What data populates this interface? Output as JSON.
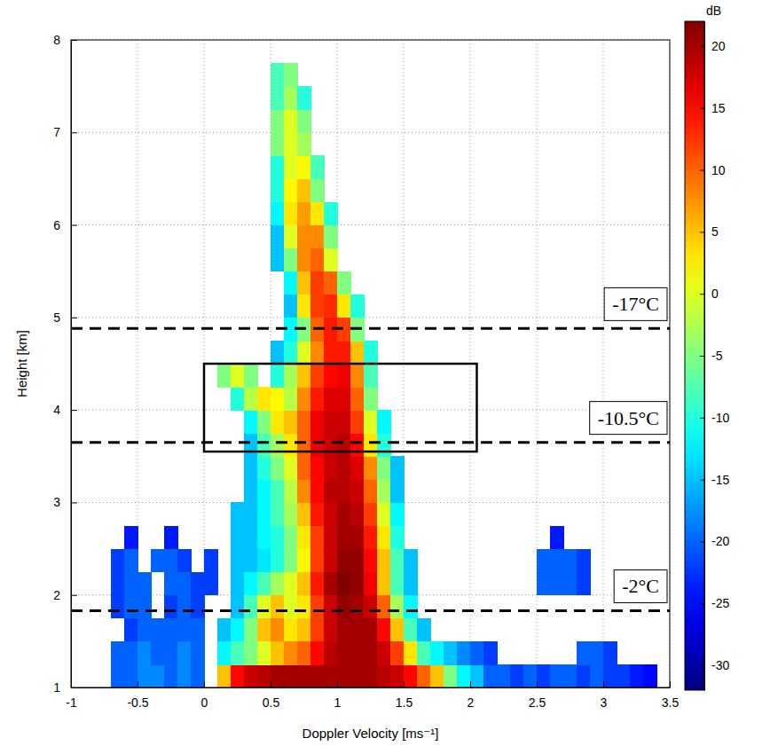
{
  "chart_data": {
    "type": "heatmap",
    "x_label": "Doppler Velocity [ms⁻¹]",
    "y_label": "Height [km]",
    "xlim": [
      -1,
      3.5
    ],
    "ylim": [
      1,
      8
    ],
    "xticks": [
      -1,
      -0.5,
      0,
      0.5,
      1,
      1.5,
      2,
      2.5,
      3,
      3.5
    ],
    "yticks": [
      1,
      2,
      3,
      4,
      5,
      6,
      7,
      8
    ],
    "grid": true,
    "x": [
      -0.95,
      -0.85,
      -0.75,
      -0.65,
      -0.55,
      -0.45,
      -0.35,
      -0.25,
      -0.15,
      -0.05,
      0.05,
      0.15,
      0.25,
      0.35,
      0.45,
      0.55,
      0.65,
      0.75,
      0.85,
      0.95,
      1.05,
      1.15,
      1.25,
      1.35,
      1.45,
      1.55,
      1.65,
      1.75,
      1.85,
      1.95,
      2.05,
      2.15,
      2.25,
      2.35,
      2.45,
      2.55,
      2.65,
      2.75,
      2.85,
      2.95,
      3.05,
      3.15,
      3.25,
      3.35,
      3.45
    ],
    "y": [
      1.125,
      1.375,
      1.625,
      1.875,
      2.125,
      2.375,
      2.625,
      2.875,
      3.125,
      3.375,
      3.625,
      3.875,
      4.125,
      4.375,
      4.625,
      4.875,
      5.125,
      5.375,
      5.625,
      5.875,
      6.125,
      6.375,
      6.625,
      6.875,
      7.125,
      7.375,
      7.625
    ],
    "cells": [
      [
        null,
        null,
        null,
        -20,
        -20,
        -18,
        -18,
        -20,
        -18,
        -20,
        null,
        5,
        15,
        18,
        19,
        20,
        20,
        20,
        20,
        20,
        20,
        20,
        20,
        19,
        18,
        15,
        10,
        5,
        -5,
        -12,
        -15,
        -20,
        -20,
        -22,
        -20,
        -22,
        -20,
        -20,
        -22,
        -20,
        -22,
        -22,
        -24,
        -25,
        null
      ],
      [
        null,
        null,
        null,
        -20,
        -20,
        -18,
        -20,
        -20,
        -18,
        -20,
        null,
        -12,
        -8,
        -5,
        0,
        5,
        8,
        10,
        15,
        19,
        20,
        20,
        20,
        18,
        12,
        3,
        -8,
        -12,
        -15,
        -18,
        -20,
        -22,
        null,
        null,
        null,
        null,
        null,
        null,
        -20,
        -20,
        -22,
        null,
        null,
        null,
        null
      ],
      [
        null,
        null,
        null,
        null,
        -22,
        -20,
        -20,
        -20,
        -20,
        -20,
        null,
        -15,
        -12,
        -5,
        5,
        8,
        3,
        5,
        12,
        18,
        20,
        20,
        20,
        15,
        5,
        -8,
        -15,
        null,
        null,
        null,
        null,
        null,
        null,
        null,
        null,
        null,
        null,
        null,
        null,
        null,
        null,
        null,
        null,
        null,
        null
      ],
      [
        null,
        null,
        null,
        -22,
        -20,
        -20,
        null,
        -22,
        -20,
        -22,
        null,
        null,
        -15,
        -8,
        0,
        5,
        0,
        3,
        12,
        18,
        21,
        20,
        18,
        10,
        -3,
        -12,
        null,
        null,
        null,
        null,
        null,
        null,
        null,
        null,
        null,
        null,
        null,
        null,
        null,
        null,
        null,
        null,
        null,
        null,
        null
      ],
      [
        null,
        null,
        null,
        -22,
        -20,
        -20,
        null,
        -20,
        -20,
        -22,
        -22,
        null,
        -15,
        -12,
        -8,
        -3,
        0,
        5,
        14,
        20,
        22,
        21,
        16,
        5,
        -8,
        -15,
        null,
        null,
        null,
        null,
        null,
        null,
        null,
        null,
        null,
        -20,
        -20,
        -20,
        -22,
        null,
        null,
        null,
        null,
        null,
        null
      ],
      [
        null,
        null,
        null,
        -22,
        -20,
        null,
        -20,
        -20,
        -22,
        null,
        -22,
        null,
        -15,
        -15,
        -13,
        -10,
        -5,
        2,
        12,
        18,
        21,
        21,
        15,
        5,
        -8,
        -15,
        null,
        null,
        null,
        null,
        null,
        null,
        null,
        null,
        null,
        -20,
        -20,
        -20,
        -22,
        null,
        null,
        null,
        null,
        null,
        null
      ],
      [
        null,
        null,
        null,
        null,
        -24,
        null,
        null,
        -24,
        null,
        null,
        null,
        null,
        -15,
        -15,
        -12,
        -10,
        -5,
        3,
        12,
        18,
        20,
        20,
        14,
        3,
        -10,
        null,
        null,
        null,
        null,
        null,
        null,
        null,
        null,
        null,
        null,
        null,
        -24,
        null,
        null,
        null,
        null,
        null,
        null,
        null,
        null
      ],
      [
        null,
        null,
        null,
        null,
        null,
        null,
        null,
        null,
        null,
        null,
        null,
        null,
        -15,
        -15,
        -12,
        -8,
        -3,
        5,
        14,
        18,
        20,
        19,
        12,
        0,
        -12,
        null,
        null,
        null,
        null,
        null,
        null,
        null,
        null,
        null,
        null,
        null,
        null,
        null,
        null,
        null,
        null,
        null,
        null,
        null,
        null
      ],
      [
        null,
        null,
        null,
        null,
        null,
        null,
        null,
        null,
        null,
        null,
        null,
        null,
        null,
        -15,
        -12,
        -8,
        -2,
        8,
        15,
        19,
        19,
        18,
        10,
        -3,
        -15,
        null,
        null,
        null,
        null,
        null,
        null,
        null,
        null,
        null,
        null,
        null,
        null,
        null,
        null,
        null,
        null,
        null,
        null,
        null,
        null
      ],
      [
        null,
        null,
        null,
        null,
        null,
        null,
        null,
        null,
        null,
        null,
        null,
        null,
        null,
        -15,
        -10,
        -5,
        0,
        10,
        15,
        18,
        19,
        17,
        8,
        -5,
        -15,
        null,
        null,
        null,
        null,
        null,
        null,
        null,
        null,
        null,
        null,
        null,
        null,
        null,
        null,
        null,
        null,
        null,
        null,
        null,
        null
      ],
      [
        null,
        null,
        null,
        null,
        null,
        null,
        null,
        null,
        null,
        null,
        null,
        null,
        null,
        -15,
        -8,
        -3,
        3,
        10,
        16,
        18,
        19,
        15,
        3,
        -10,
        null,
        null,
        null,
        null,
        null,
        null,
        null,
        null,
        null,
        null,
        null,
        null,
        null,
        null,
        null,
        null,
        null,
        null,
        null,
        null,
        null
      ],
      [
        null,
        null,
        null,
        null,
        null,
        null,
        null,
        null,
        null,
        null,
        null,
        null,
        null,
        -12,
        -5,
        3,
        5,
        10,
        16,
        18,
        18,
        12,
        0,
        -12,
        null,
        null,
        null,
        null,
        null,
        null,
        null,
        null,
        null,
        null,
        null,
        null,
        null,
        null,
        null,
        null,
        null,
        null,
        null,
        null,
        null
      ],
      [
        null,
        null,
        null,
        null,
        null,
        null,
        null,
        null,
        null,
        null,
        null,
        null,
        -10,
        -2,
        3,
        2,
        -2,
        8,
        14,
        17,
        17,
        10,
        -5,
        null,
        null,
        null,
        null,
        null,
        null,
        null,
        null,
        null,
        null,
        null,
        null,
        null,
        null,
        null,
        null,
        null,
        null,
        null,
        null,
        null,
        null
      ],
      [
        null,
        null,
        null,
        null,
        null,
        null,
        null,
        null,
        null,
        null,
        null,
        -5,
        0,
        -5,
        null,
        -10,
        -3,
        5,
        12,
        15,
        16,
        8,
        -8,
        null,
        null,
        null,
        null,
        null,
        null,
        null,
        null,
        null,
        null,
        null,
        null,
        null,
        null,
        null,
        null,
        null,
        null,
        null,
        null,
        null,
        null
      ],
      [
        null,
        null,
        null,
        null,
        null,
        null,
        null,
        null,
        null,
        null,
        null,
        null,
        null,
        null,
        null,
        -15,
        -10,
        0,
        8,
        14,
        14,
        5,
        -10,
        null,
        null,
        null,
        null,
        null,
        null,
        null,
        null,
        null,
        null,
        null,
        null,
        null,
        null,
        null,
        null,
        null,
        null,
        null,
        null,
        null,
        null
      ],
      [
        null,
        null,
        null,
        null,
        null,
        null,
        null,
        null,
        null,
        null,
        null,
        null,
        null,
        null,
        null,
        null,
        -12,
        -5,
        10,
        14,
        12,
        -5,
        null,
        null,
        null,
        null,
        null,
        null,
        null,
        null,
        null,
        null,
        null,
        null,
        null,
        null,
        null,
        null,
        null,
        null,
        null,
        null,
        null,
        null,
        null
      ],
      [
        null,
        null,
        null,
        null,
        null,
        null,
        null,
        null,
        null,
        null,
        null,
        null,
        null,
        null,
        null,
        null,
        -15,
        3,
        12,
        13,
        3,
        -10,
        null,
        null,
        null,
        null,
        null,
        null,
        null,
        null,
        null,
        null,
        null,
        null,
        null,
        null,
        null,
        null,
        null,
        null,
        null,
        null,
        null,
        null,
        null
      ],
      [
        null,
        null,
        null,
        null,
        null,
        null,
        null,
        null,
        null,
        null,
        null,
        null,
        null,
        null,
        null,
        null,
        -12,
        5,
        12,
        10,
        -5,
        null,
        null,
        null,
        null,
        null,
        null,
        null,
        null,
        null,
        null,
        null,
        null,
        null,
        null,
        null,
        null,
        null,
        null,
        null,
        null,
        null,
        null,
        null,
        null
      ],
      [
        null,
        null,
        null,
        null,
        null,
        null,
        null,
        null,
        null,
        null,
        null,
        null,
        null,
        null,
        null,
        -15,
        -5,
        8,
        10,
        0,
        null,
        null,
        null,
        null,
        null,
        null,
        null,
        null,
        null,
        null,
        null,
        null,
        null,
        null,
        null,
        null,
        null,
        null,
        null,
        null,
        null,
        null,
        null,
        null,
        null
      ],
      [
        null,
        null,
        null,
        null,
        null,
        null,
        null,
        null,
        null,
        null,
        null,
        null,
        null,
        null,
        null,
        -15,
        0,
        8,
        8,
        -5,
        null,
        null,
        null,
        null,
        null,
        null,
        null,
        null,
        null,
        null,
        null,
        null,
        null,
        null,
        null,
        null,
        null,
        null,
        null,
        null,
        null,
        null,
        null,
        null,
        null
      ],
      [
        null,
        null,
        null,
        null,
        null,
        null,
        null,
        null,
        null,
        null,
        null,
        null,
        null,
        null,
        null,
        -12,
        3,
        7,
        3,
        -10,
        null,
        null,
        null,
        null,
        null,
        null,
        null,
        null,
        null,
        null,
        null,
        null,
        null,
        null,
        null,
        null,
        null,
        null,
        null,
        null,
        null,
        null,
        null,
        null,
        null
      ],
      [
        null,
        null,
        null,
        null,
        null,
        null,
        null,
        null,
        null,
        null,
        null,
        null,
        null,
        null,
        null,
        -10,
        2,
        5,
        -5,
        null,
        null,
        null,
        null,
        null,
        null,
        null,
        null,
        null,
        null,
        null,
        null,
        null,
        null,
        null,
        null,
        null,
        null,
        null,
        null,
        null,
        null,
        null,
        null,
        null,
        null
      ],
      [
        null,
        null,
        null,
        null,
        null,
        null,
        null,
        null,
        null,
        null,
        null,
        null,
        null,
        null,
        null,
        -10,
        0,
        2,
        -8,
        null,
        null,
        null,
        null,
        null,
        null,
        null,
        null,
        null,
        null,
        null,
        null,
        null,
        null,
        null,
        null,
        null,
        null,
        null,
        null,
        null,
        null,
        null,
        null,
        null,
        null
      ],
      [
        null,
        null,
        null,
        null,
        null,
        null,
        null,
        null,
        null,
        null,
        null,
        null,
        null,
        null,
        null,
        -5,
        0,
        -3,
        null,
        null,
        null,
        null,
        null,
        null,
        null,
        null,
        null,
        null,
        null,
        null,
        null,
        null,
        null,
        null,
        null,
        null,
        null,
        null,
        null,
        null,
        null,
        null,
        null,
        null,
        null
      ],
      [
        null,
        null,
        null,
        null,
        null,
        null,
        null,
        null,
        null,
        null,
        null,
        null,
        null,
        null,
        null,
        -5,
        0,
        -5,
        null,
        null,
        null,
        null,
        null,
        null,
        null,
        null,
        null,
        null,
        null,
        null,
        null,
        null,
        null,
        null,
        null,
        null,
        null,
        null,
        null,
        null,
        null,
        null,
        null,
        null,
        null
      ],
      [
        null,
        null,
        null,
        null,
        null,
        null,
        null,
        null,
        null,
        null,
        null,
        null,
        null,
        null,
        null,
        -8,
        -3,
        -10,
        null,
        null,
        null,
        null,
        null,
        null,
        null,
        null,
        null,
        null,
        null,
        null,
        null,
        null,
        null,
        null,
        null,
        null,
        null,
        null,
        null,
        null,
        null,
        null,
        null,
        null,
        null
      ],
      [
        null,
        null,
        null,
        null,
        null,
        null,
        null,
        null,
        null,
        null,
        null,
        null,
        null,
        null,
        null,
        -8,
        -5,
        null,
        null,
        null,
        null,
        null,
        null,
        null,
        null,
        null,
        null,
        null,
        null,
        null,
        null,
        null,
        null,
        null,
        null,
        null,
        null,
        null,
        null,
        null,
        null,
        null,
        null,
        null,
        null
      ]
    ],
    "colorbar": {
      "label": "dB",
      "range": [
        -32,
        22
      ],
      "ticks": [
        -30,
        -25,
        -20,
        -15,
        -10,
        -5,
        0,
        5,
        10,
        15,
        20
      ]
    },
    "reference_lines": [
      {
        "y": 4.88,
        "label": "-17°C",
        "line_style": "dashed"
      },
      {
        "y": 3.65,
        "label": "-10.5°C",
        "line_style": "dashed"
      },
      {
        "y": 1.83,
        "label": "-2°C",
        "line_style": "dashed"
      }
    ],
    "box": {
      "x": [
        0,
        2.05
      ],
      "y": [
        3.55,
        4.5
      ]
    }
  }
}
